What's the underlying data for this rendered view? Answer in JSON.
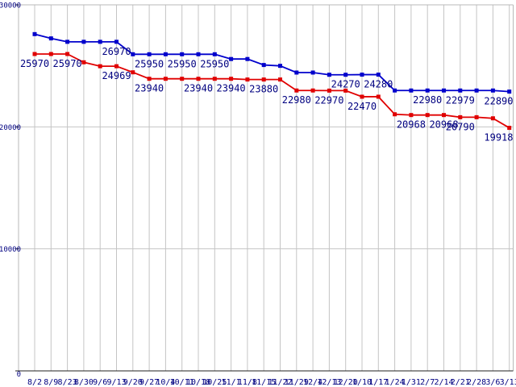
{
  "chart_data": {
    "type": "line",
    "title": "",
    "xlabel": "",
    "ylabel": "",
    "grid": true,
    "legend": "none",
    "background": "#ffffff",
    "ylim": [
      0,
      30000
    ],
    "y_ticks": [
      {
        "value": 0,
        "label": "0"
      },
      {
        "value": 10000,
        "label": "10000"
      },
      {
        "value": 20000,
        "label": "20000"
      },
      {
        "value": 30000,
        "label": "30000"
      }
    ],
    "x_tick_labels": [
      "8/2",
      "8/9",
      "8/23",
      "8/30",
      "9/6",
      "9/13",
      "9/20",
      "9/27",
      "10/4",
      "10/11",
      "10/18",
      "10/25",
      "11/1",
      "11/8",
      "11/15",
      "11/22",
      "11/29",
      "12/4",
      "12/13",
      "12/20",
      "1/10",
      "1/17",
      "1/24",
      "1/31",
      "2/7",
      "2/14",
      "2/21",
      "2/28",
      "3/6",
      "3/13"
    ],
    "series": [
      {
        "name": "upper-blue-series",
        "color": "#0000cc",
        "marker": "square",
        "values": [
          27600,
          27250,
          26970,
          26970,
          26970,
          26970,
          25950,
          25950,
          25950,
          25950,
          25950,
          25950,
          25560,
          25560,
          25070,
          25000,
          24450,
          24450,
          24270,
          24270,
          24280,
          24280,
          22980,
          22980,
          22980,
          22980,
          22979,
          22979,
          22979,
          22890
        ],
        "point_labels": {
          "5": "26970",
          "7": "25950",
          "9": "25950",
          "11": "25950",
          "19": "24270",
          "21": "24280",
          "24": "22980",
          "26": "22979",
          "29": "22890"
        }
      },
      {
        "name": "lower-red-series",
        "color": "#e00000",
        "marker": "square",
        "values": [
          25970,
          25970,
          25970,
          25290,
          24969,
          24969,
          24470,
          23940,
          23940,
          23940,
          23940,
          23940,
          23940,
          23880,
          23880,
          23880,
          22980,
          22980,
          22970,
          22970,
          22470,
          22470,
          21030,
          20968,
          20968,
          20968,
          20790,
          20790,
          20700,
          19918
        ],
        "point_labels": {
          "0": "25970",
          "2": "25970",
          "5": "24969",
          "7": "23940",
          "10": "23940",
          "12": "23940",
          "14": "23880",
          "16": "22980",
          "18": "22970",
          "20": "22470",
          "23": "20968",
          "25": "20968",
          "26": "20790",
          "29": "19918"
        }
      }
    ],
    "colors": {
      "grid": "#c4c4c4",
      "plot_border": "#b8b8b8",
      "axis": "#202020",
      "tick_text": "#000080",
      "point_label_text": "#000080"
    }
  }
}
